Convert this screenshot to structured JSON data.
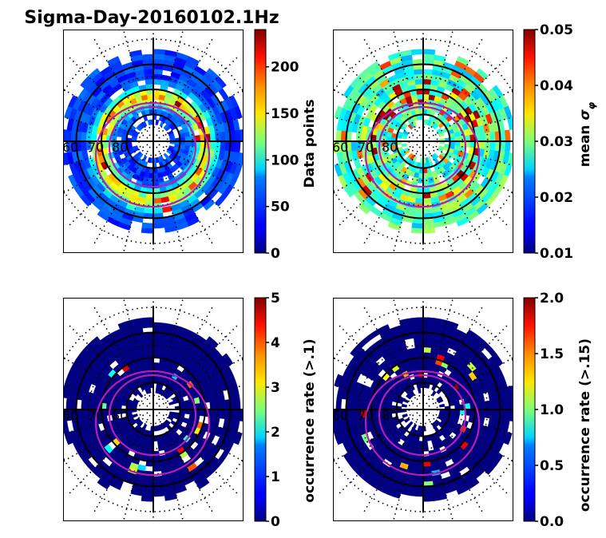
{
  "chart_data": [
    {
      "type": "heatmap",
      "projection": "polar",
      "title": "Sigma-Day-20160102.1Hz",
      "panel": "top-left",
      "colormap": "jet",
      "colorbar": {
        "label": "Data points",
        "min": 0,
        "max": 240,
        "ticks": [
          0,
          50,
          100,
          150,
          200
        ],
        "tick_labels": [
          "0",
          "50",
          "100",
          "150",
          "200"
        ]
      },
      "latitude_labels": [
        "60",
        "70",
        "80"
      ],
      "grid_circles_latitude": [
        50,
        60,
        70,
        80
      ],
      "description": "Counts per MLat/MLT bin; mostly 20-120 with peaks ~200-240 near 70° MLat on dayside/noon sector",
      "bins_summary": {
        "min": 0,
        "max": 240,
        "typical": 60
      },
      "auroral_oval_boundaries": 2
    },
    {
      "type": "heatmap",
      "projection": "polar",
      "panel": "top-right",
      "colormap": "jet",
      "colorbar": {
        "label": "mean σφ",
        "min": 0.01,
        "max": 0.05,
        "ticks": [
          0.01,
          0.02,
          0.03,
          0.04,
          0.05
        ],
        "tick_labels": [
          "0.01",
          "0.02",
          "0.03",
          "0.04",
          "0.05"
        ]
      },
      "latitude_labels": [
        "60",
        "70",
        "80"
      ],
      "description": "Mean phase scintillation index; mostly 0.02-0.03, peaks ≥0.05 near 75° MLat dayside cusp and nightside 70°",
      "bins_summary": {
        "min": 0.015,
        "max": 0.05,
        "typical": 0.025
      },
      "auroral_oval_boundaries": 2
    },
    {
      "type": "heatmap",
      "projection": "polar",
      "panel": "bottom-left",
      "colormap": "jet",
      "colorbar": {
        "label": "occurrence rate (>.1)",
        "min": 0,
        "max": 5,
        "ticks": [
          0,
          1,
          2,
          3,
          4,
          5
        ],
        "tick_labels": [
          "0",
          "1",
          "2",
          "3",
          "4",
          "5"
        ]
      },
      "latitude_labels": [
        "60",
        "70",
        "80"
      ],
      "description": "Occurrence rate of σφ>0.1 (%); mostly 0, sparse bins 2-5 along oval",
      "bins_summary": {
        "min": 0,
        "max": 5,
        "typical": 0
      },
      "auroral_oval_boundaries": 2
    },
    {
      "type": "heatmap",
      "projection": "polar",
      "panel": "bottom-right",
      "colormap": "jet",
      "colorbar": {
        "label": "occurrence rate (>.15)",
        "min": 0.0,
        "max": 2.0,
        "ticks": [
          0.0,
          0.5,
          1.0,
          1.5,
          2.0
        ],
        "tick_labels": [
          "0.0",
          "0.5",
          "1.0",
          "1.5",
          "2.0"
        ]
      },
      "latitude_labels": [
        "60",
        "70",
        "80"
      ],
      "description": "Occurrence rate of σφ>0.15 (%); mostly 0, sparse bins 1.5-2 along nightside oval",
      "bins_summary": {
        "min": 0,
        "max": 2,
        "typical": 0
      },
      "auroral_oval_boundaries": 2
    }
  ],
  "figure": {
    "title": "Sigma-Day-20160102.1Hz",
    "colors": {
      "oval": "#b41eb4",
      "grid": "#000000",
      "empty_bin": "#ffffff",
      "zero_bin": "#00007f"
    }
  }
}
